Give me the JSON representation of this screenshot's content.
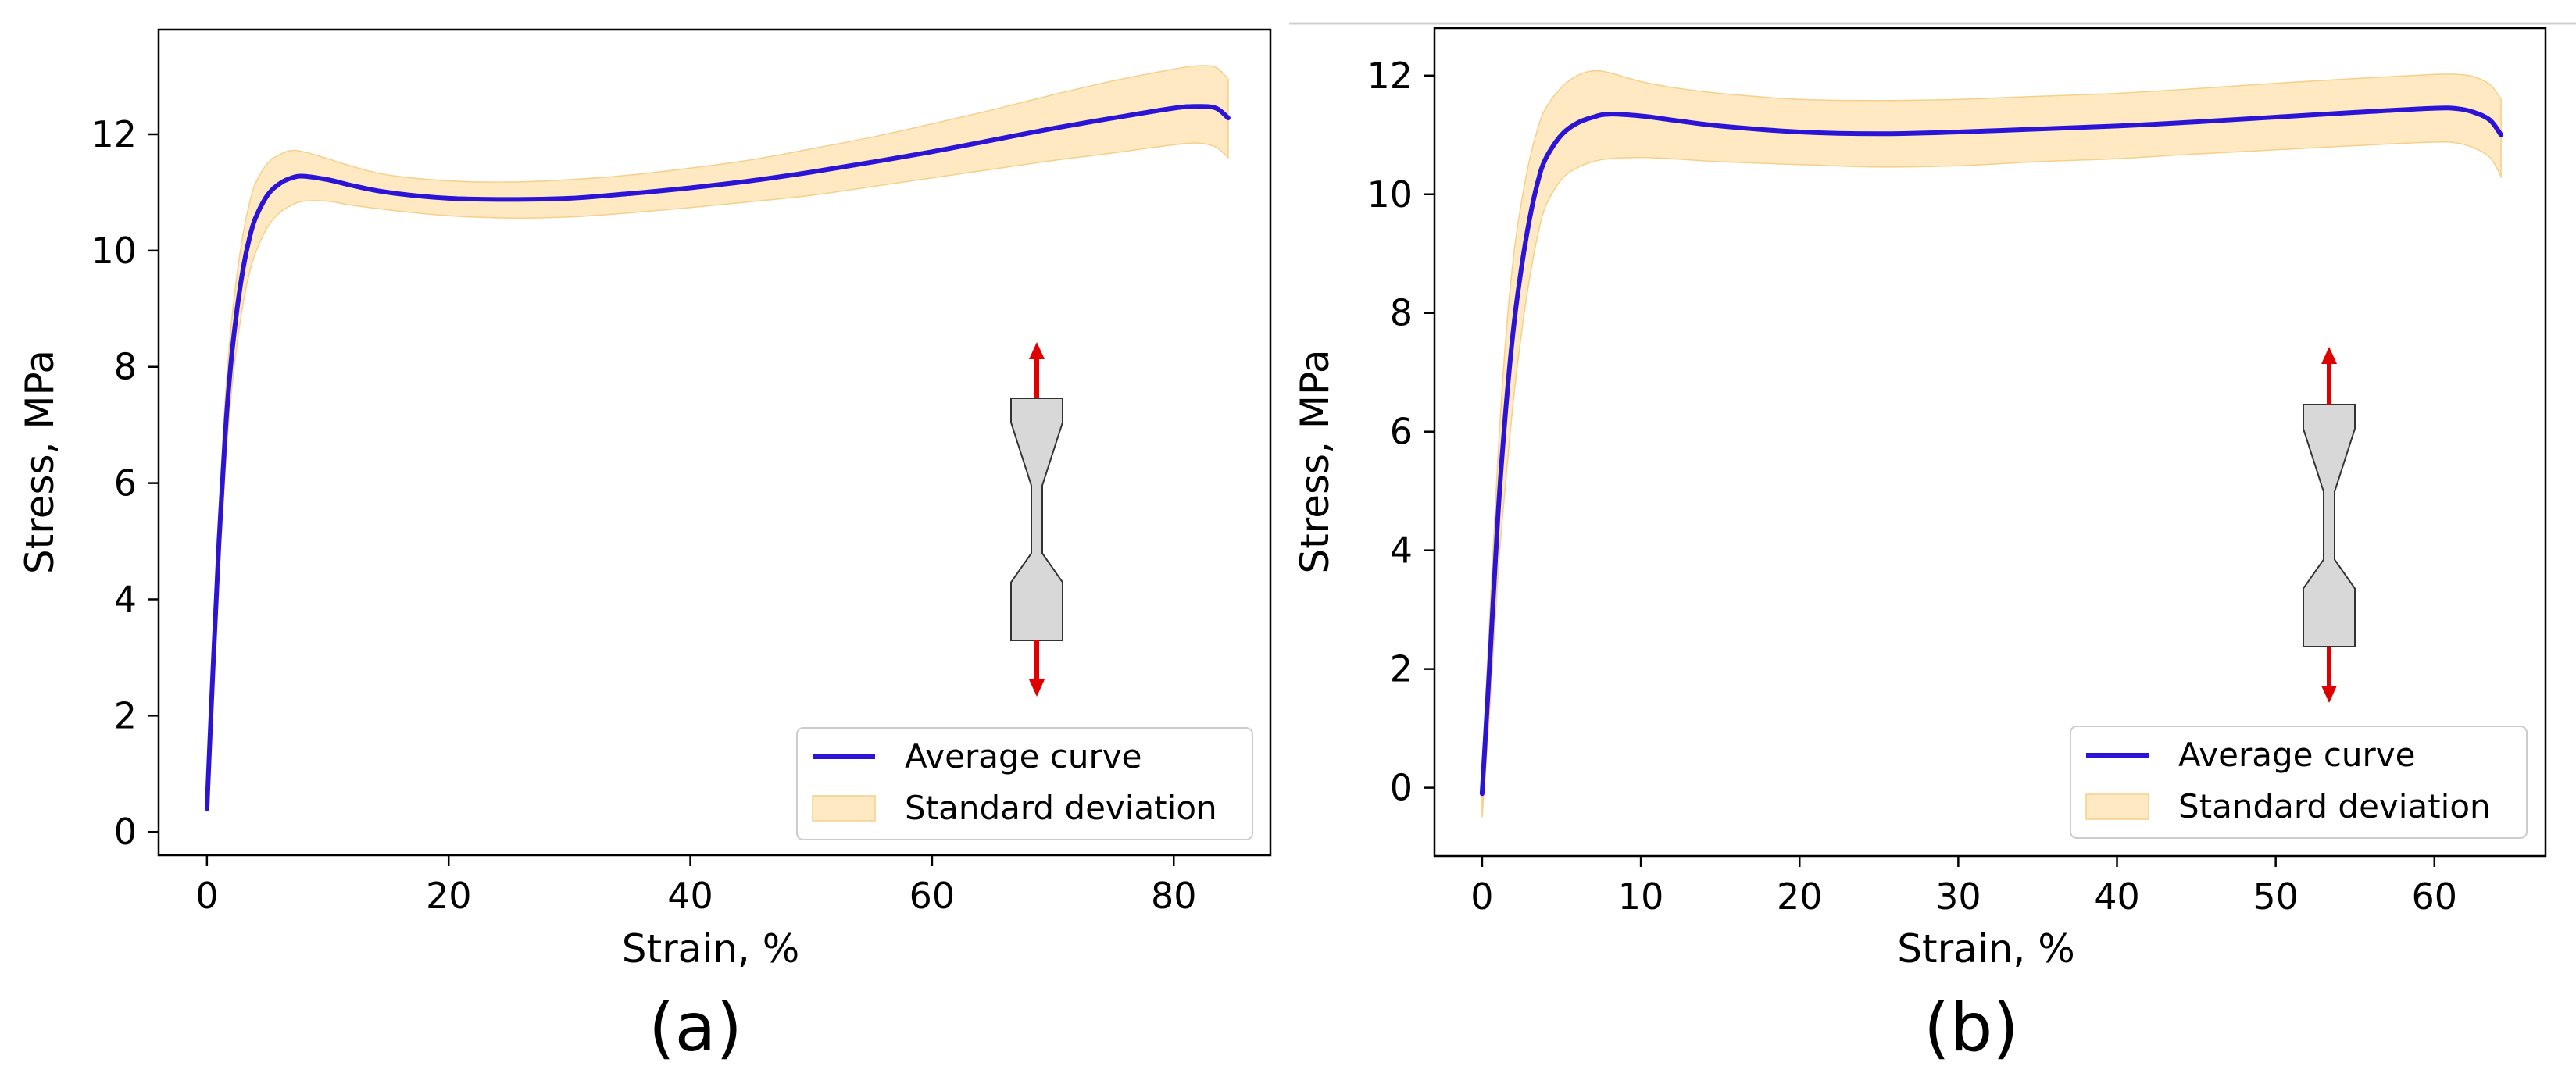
{
  "chart_data": [
    {
      "type": "line",
      "panel": "(a)",
      "xlabel": "Strain, %",
      "ylabel": "Stress, MPa",
      "xlim": [
        -4,
        88
      ],
      "ylim": [
        -0.4,
        13.8
      ],
      "xticks": [
        0,
        20,
        40,
        60,
        80
      ],
      "yticks": [
        0,
        2,
        4,
        6,
        8,
        10,
        12
      ],
      "grid": false,
      "legend_position": "bottom-right",
      "colors": {
        "line": "#2b14d6",
        "band": "#ffe9c2",
        "band_edge": "#f6cf8a",
        "arrow": "#e00000",
        "specimen": "#d8d8d8"
      },
      "series": [
        {
          "name": "Average curve",
          "x": [
            0,
            0.5,
            1,
            1.5,
            2,
            2.5,
            3,
            3.5,
            4,
            5,
            6,
            7,
            8,
            10,
            12,
            15,
            20,
            25,
            30,
            35,
            40,
            45,
            50,
            55,
            60,
            65,
            70,
            75,
            80,
            82,
            83.5,
            84.5
          ],
          "y": [
            0.4,
            2.8,
            5.0,
            6.8,
            8.1,
            9.0,
            9.7,
            10.2,
            10.55,
            10.95,
            11.15,
            11.25,
            11.28,
            11.22,
            11.12,
            11.0,
            10.9,
            10.88,
            10.9,
            10.98,
            11.08,
            11.2,
            11.35,
            11.52,
            11.7,
            11.9,
            12.1,
            12.28,
            12.45,
            12.48,
            12.45,
            12.28
          ]
        },
        {
          "name": "Standard deviation",
          "x": [
            0.5,
            1,
            1.5,
            2,
            2.5,
            3,
            3.5,
            4,
            5,
            6,
            7,
            8,
            10,
            12,
            15,
            20,
            25,
            30,
            35,
            40,
            45,
            50,
            55,
            60,
            65,
            70,
            75,
            80,
            82,
            83.5,
            84.5
          ],
          "upper": [
            3.3,
            5.6,
            7.4,
            8.7,
            9.6,
            10.3,
            10.8,
            11.15,
            11.5,
            11.65,
            11.72,
            11.7,
            11.58,
            11.45,
            11.3,
            11.2,
            11.18,
            11.22,
            11.3,
            11.42,
            11.56,
            11.75,
            11.95,
            12.18,
            12.42,
            12.68,
            12.92,
            13.12,
            13.18,
            13.15,
            12.95
          ],
          "lower": [
            2.3,
            4.4,
            6.2,
            7.5,
            8.4,
            9.1,
            9.6,
            9.95,
            10.4,
            10.65,
            10.78,
            10.85,
            10.85,
            10.78,
            10.7,
            10.6,
            10.56,
            10.58,
            10.65,
            10.74,
            10.84,
            10.95,
            11.1,
            11.25,
            11.4,
            11.55,
            11.68,
            11.82,
            11.85,
            11.78,
            11.6
          ]
        }
      ]
    },
    {
      "type": "line",
      "panel": "(b)",
      "xlabel": "Strain, %",
      "ylabel": "Stress, MPa",
      "xlim": [
        -3,
        67
      ],
      "ylim": [
        -1.15,
        12.8
      ],
      "xticks": [
        0,
        10,
        20,
        30,
        40,
        50,
        60
      ],
      "yticks": [
        0,
        2,
        4,
        6,
        8,
        10,
        12
      ],
      "grid": false,
      "legend_position": "bottom-right",
      "colors": {
        "line": "#2b14d6",
        "band": "#ffe9c2",
        "band_edge": "#f6cf8a",
        "arrow": "#e00000",
        "specimen": "#d8d8d8"
      },
      "series": [
        {
          "name": "Average curve",
          "x": [
            0,
            0.5,
            1,
            1.5,
            2,
            2.5,
            3,
            3.5,
            4,
            5,
            6,
            7,
            8,
            10,
            12,
            15,
            20,
            25,
            30,
            35,
            40,
            45,
            50,
            55,
            60,
            61.5,
            62.5,
            63.5,
            64.2
          ],
          "y": [
            -0.1,
            2.2,
            4.6,
            6.4,
            7.8,
            8.8,
            9.6,
            10.2,
            10.6,
            11.0,
            11.2,
            11.3,
            11.35,
            11.32,
            11.25,
            11.15,
            11.05,
            11.02,
            11.05,
            11.1,
            11.15,
            11.22,
            11.3,
            11.38,
            11.45,
            11.44,
            11.38,
            11.25,
            11.0
          ]
        },
        {
          "name": "Standard deviation",
          "x": [
            0,
            0.5,
            1,
            1.5,
            2,
            2.5,
            3,
            3.5,
            4,
            5,
            6,
            7,
            8,
            10,
            12,
            15,
            20,
            25,
            30,
            35,
            40,
            45,
            50,
            55,
            60,
            61.5,
            62.5,
            63.5,
            64.2
          ],
          "upper": [
            0.3,
            3.0,
            5.6,
            7.6,
            9.0,
            9.9,
            10.6,
            11.1,
            11.45,
            11.8,
            12.0,
            12.08,
            12.05,
            11.9,
            11.8,
            11.7,
            11.6,
            11.58,
            11.6,
            11.65,
            11.7,
            11.78,
            11.87,
            11.95,
            12.02,
            12.02,
            11.98,
            11.85,
            11.6
          ],
          "lower": [
            -0.5,
            1.4,
            3.6,
            5.2,
            6.6,
            7.7,
            8.6,
            9.3,
            9.8,
            10.25,
            10.45,
            10.55,
            10.6,
            10.62,
            10.6,
            10.55,
            10.5,
            10.46,
            10.48,
            10.55,
            10.6,
            10.68,
            10.75,
            10.82,
            10.88,
            10.86,
            10.78,
            10.62,
            10.3
          ]
        }
      ]
    }
  ]
}
